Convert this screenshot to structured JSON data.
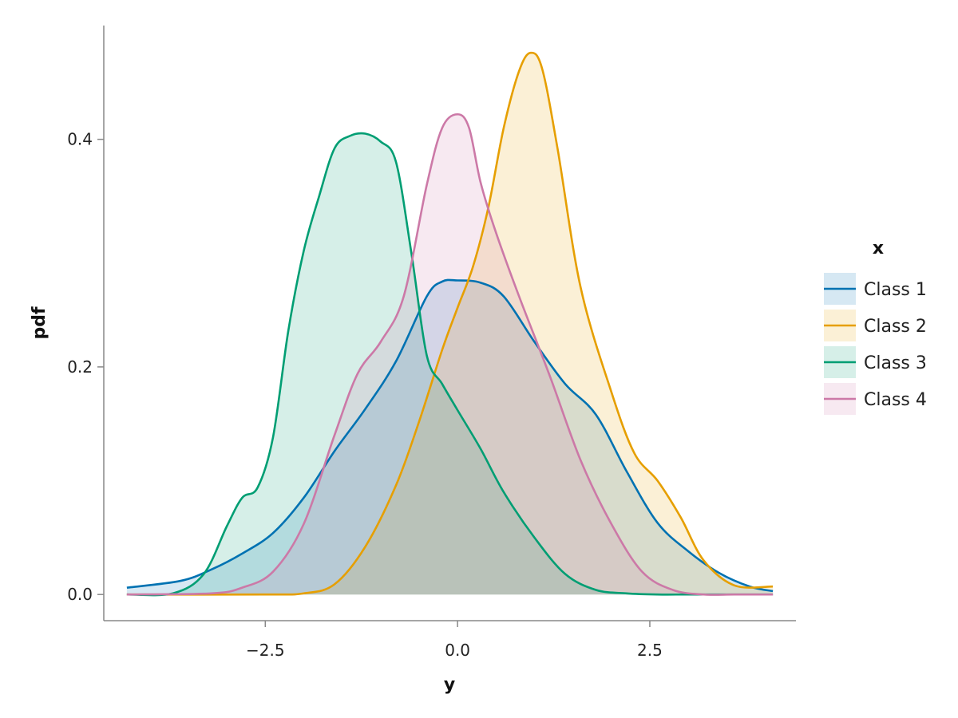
{
  "chart_data": {
    "type": "area",
    "xlabel": "y",
    "ylabel": "pdf",
    "xlim": [
      -4.6,
      4.4
    ],
    "ylim": [
      -0.023,
      0.5
    ],
    "xticks": [
      -2.5,
      0.0,
      2.5
    ],
    "xtick_labels": [
      "−2.5",
      "0.0",
      "2.5"
    ],
    "yticks": [
      0.0,
      0.2,
      0.4
    ],
    "ytick_labels": [
      "0.0",
      "0.2",
      "0.4"
    ],
    "grid": false,
    "legend": {
      "title": "x",
      "position": "right"
    },
    "series": [
      {
        "name": "Class 1",
        "color": "#0072B2",
        "x": [
          -4.3,
          -3.6,
          -3.2,
          -2.8,
          -2.4,
          -2.0,
          -1.6,
          -1.2,
          -0.8,
          -0.4,
          -0.2,
          0.0,
          0.3,
          0.6,
          1.0,
          1.4,
          1.8,
          2.2,
          2.6,
          3.0,
          3.4,
          3.8,
          4.1
        ],
        "y": [
          0.006,
          0.012,
          0.022,
          0.036,
          0.054,
          0.085,
          0.126,
          0.163,
          0.205,
          0.262,
          0.275,
          0.276,
          0.274,
          0.262,
          0.222,
          0.185,
          0.158,
          0.108,
          0.063,
          0.038,
          0.019,
          0.007,
          0.003
        ]
      },
      {
        "name": "Class 2",
        "color": "#E69F00",
        "x": [
          -4.3,
          -2.5,
          -2.0,
          -1.6,
          -1.2,
          -0.8,
          -0.5,
          -0.2,
          0.0,
          0.2,
          0.4,
          0.6,
          0.8,
          0.95,
          1.1,
          1.3,
          1.6,
          2.0,
          2.3,
          2.6,
          2.9,
          3.2,
          3.6,
          4.1
        ],
        "y": [
          0.0,
          0.0,
          0.001,
          0.009,
          0.042,
          0.096,
          0.152,
          0.215,
          0.252,
          0.288,
          0.34,
          0.41,
          0.46,
          0.476,
          0.462,
          0.392,
          0.27,
          0.178,
          0.124,
          0.1,
          0.068,
          0.03,
          0.008,
          0.007
        ]
      },
      {
        "name": "Class 3",
        "color": "#009E73",
        "x": [
          -4.3,
          -3.7,
          -3.3,
          -3.0,
          -2.8,
          -2.6,
          -2.4,
          -2.2,
          -2.0,
          -1.8,
          -1.6,
          -1.4,
          -1.2,
          -1.0,
          -0.8,
          -0.6,
          -0.4,
          -0.2,
          0.0,
          0.3,
          0.6,
          1.0,
          1.4,
          1.8,
          2.2,
          2.6,
          3.0,
          3.6,
          4.1
        ],
        "y": [
          0.0,
          0.001,
          0.018,
          0.06,
          0.085,
          0.094,
          0.138,
          0.232,
          0.302,
          0.35,
          0.392,
          0.403,
          0.405,
          0.398,
          0.38,
          0.3,
          0.21,
          0.185,
          0.162,
          0.128,
          0.09,
          0.05,
          0.018,
          0.004,
          0.001,
          0.0,
          0.0,
          0.0,
          0.0
        ]
      },
      {
        "name": "Class 4",
        "color": "#CC79A7",
        "x": [
          -4.3,
          -3.2,
          -2.8,
          -2.4,
          -2.0,
          -1.6,
          -1.3,
          -1.0,
          -0.7,
          -0.4,
          -0.2,
          0.0,
          0.15,
          0.3,
          0.5,
          0.8,
          1.2,
          1.6,
          2.0,
          2.4,
          2.8,
          3.2,
          3.6,
          4.1
        ],
        "y": [
          0.0,
          0.001,
          0.006,
          0.02,
          0.062,
          0.14,
          0.194,
          0.222,
          0.262,
          0.36,
          0.41,
          0.422,
          0.41,
          0.362,
          0.318,
          0.262,
          0.192,
          0.118,
          0.062,
          0.02,
          0.004,
          0.0,
          0.0,
          0.0
        ]
      }
    ]
  }
}
